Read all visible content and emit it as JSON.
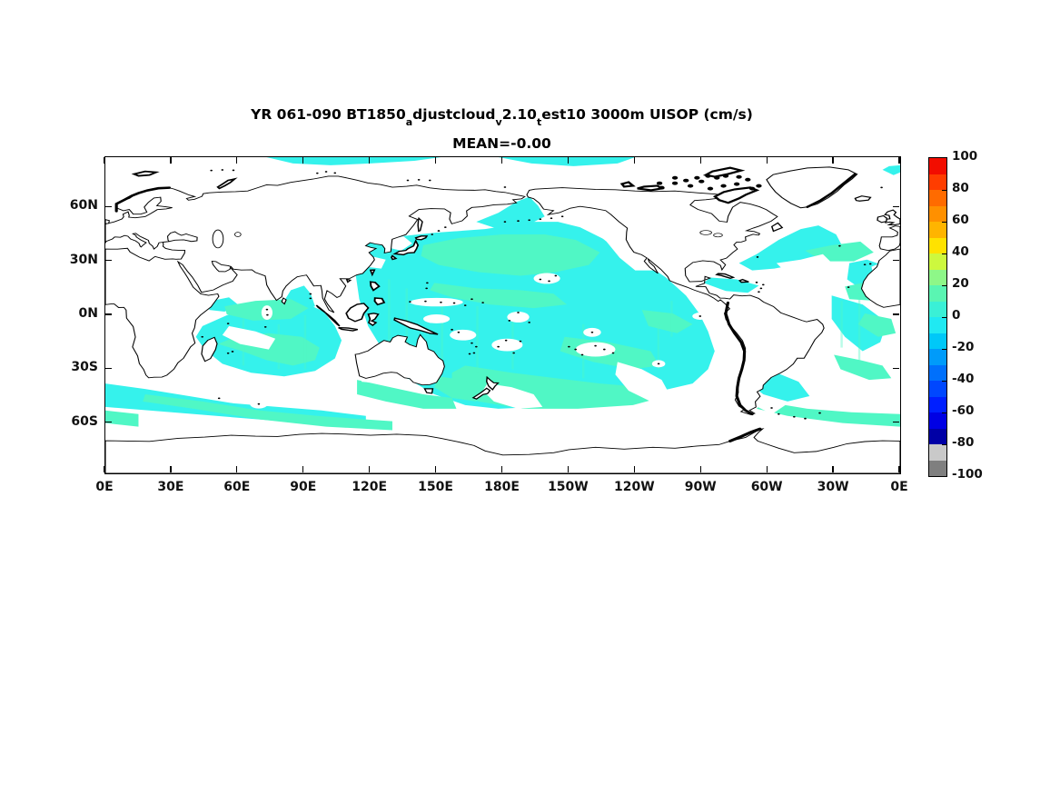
{
  "figure": {
    "title_parts": [
      {
        "t": "YR 061-090 BT1850"
      },
      {
        "s": "a"
      },
      {
        "t": "djustcloud"
      },
      {
        "s": "v"
      },
      {
        "t": "2.10"
      },
      {
        "s": "t"
      },
      {
        "t": "est10 3000m UISOP (cm/s)"
      }
    ],
    "title_plain": "YR 061-090 BT1850_adjustcloud_v2.10_test10 3000m UISOP (cm/s)",
    "subtitle": "MEAN=-0.00"
  },
  "chart_data": {
    "type": "heatmap",
    "title": "YR 061-090 BT1850_adjustcloud_v2.10_test10 3000m UISOP (cm/s)",
    "subtitle": "MEAN=-0.00",
    "variable": "UISOP zonal velocity at 3000 m depth (cm/s), model years 061-090",
    "mean_label": "MEAN=-0.00",
    "projection": "equirectangular, longitude 0E eastward to 360E (Pacific-centered), latitude 88N to 88S",
    "x_axis": {
      "ticks": [
        {
          "label": "0E",
          "lon": 0
        },
        {
          "label": "30E",
          "lon": 30
        },
        {
          "label": "60E",
          "lon": 60
        },
        {
          "label": "90E",
          "lon": 90
        },
        {
          "label": "120E",
          "lon": 120
        },
        {
          "label": "150E",
          "lon": 150
        },
        {
          "label": "180E",
          "lon": 180
        },
        {
          "label": "150W",
          "lon": 210
        },
        {
          "label": "120W",
          "lon": 240
        },
        {
          "label": "90W",
          "lon": 270
        },
        {
          "label": "60W",
          "lon": 300
        },
        {
          "label": "30W",
          "lon": 330
        },
        {
          "label": "0E",
          "lon": 360
        }
      ]
    },
    "y_axis": {
      "ticks": [
        {
          "label": "60N",
          "lat": 60
        },
        {
          "label": "30N",
          "lat": 30
        },
        {
          "label": "0N",
          "lat": 0
        },
        {
          "label": "30S",
          "lat": -30
        },
        {
          "label": "60S",
          "lat": -60
        }
      ]
    },
    "colorbar": {
      "min": -100,
      "max": 100,
      "tick_labels": [
        "100",
        "80",
        "60",
        "40",
        "20",
        "0",
        "-20",
        "-40",
        "-60",
        "-80",
        "-100"
      ],
      "tick_values": [
        100,
        80,
        60,
        40,
        20,
        0,
        -20,
        -40,
        -60,
        -80,
        -100
      ],
      "segment_colors_top_to_bottom": [
        "#f20d00",
        "#ff3d00",
        "#ff6b00",
        "#ff9000",
        "#ffb400",
        "#ffe200",
        "#cdf83e",
        "#8ef788",
        "#5af5b2",
        "#3af0d6",
        "#20e9f2",
        "#00c8f8",
        "#009bfa",
        "#0070fc",
        "#0047fe",
        "#001fff",
        "#0000e4",
        "#0000a6",
        "#c9c9c9",
        "#7f7f7f"
      ]
    },
    "map_fill_colors": {
      "value_0_to_10": "#50f7c5",
      "value_minus10_to_0": "#35f2ec",
      "out_of_contour_or_land": "#ffffff",
      "coastline": "#000000"
    },
    "data_summary": "Filled contour world map of deep (3000 m) zonal isopycnal velocity; nearly all ocean values fall between -10 and +10 cm/s (cyan = -10..0, pale green = 0..10, white = near-zero/no fill); large white areas in the Arctic, NE Pacific, subtropical gyres, northern Indian Ocean and around Antarctica; overall mean -0.00 cm/s."
  }
}
